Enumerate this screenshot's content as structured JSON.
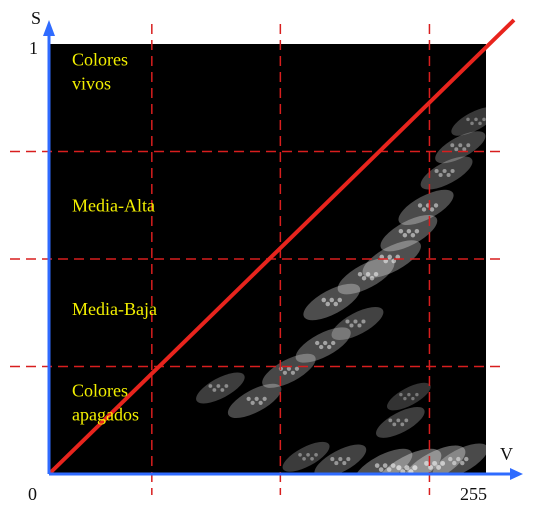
{
  "chart_data": {
    "type": "heatmap",
    "title": "",
    "xlabel": "V",
    "ylabel": "S",
    "x_tick_labels": [
      "0",
      "255"
    ],
    "y_tick_labels": [
      "1"
    ],
    "xlim": [
      0,
      255
    ],
    "ylim": [
      0,
      1
    ],
    "background_color": "#000000",
    "axis_color": "#2f6bff",
    "threshold_line_color": "#e8241d",
    "guide_line_color": "#d81e1e",
    "zone_text_color": "#f3f000",
    "vertical_guides_v": [
      60,
      135,
      222
    ],
    "horizontal_guides_s": [
      0.25,
      0.5,
      0.75
    ],
    "threshold_line": {
      "from": [
        0,
        0
      ],
      "to": [
        255,
        1
      ]
    },
    "zones": [
      {
        "lines": [
          "Colores",
          "vivos"
        ],
        "label_s": 0.95
      },
      {
        "lines": [
          "Media-Alta"
        ],
        "label_s": 0.61
      },
      {
        "lines": [
          "Media-Baja"
        ],
        "label_s": 0.37
      },
      {
        "lines": [
          "Colores",
          "apagados"
        ],
        "label_s": 0.18
      }
    ],
    "density_band": [
      {
        "v": 210,
        "s": 0.01,
        "weight": 1.0
      },
      {
        "v": 225,
        "s": 0.02,
        "weight": 0.9
      },
      {
        "v": 195,
        "s": 0.015,
        "weight": 0.8
      },
      {
        "v": 240,
        "s": 0.03,
        "weight": 0.7
      },
      {
        "v": 170,
        "s": 0.03,
        "weight": 0.6
      },
      {
        "v": 150,
        "s": 0.04,
        "weight": 0.45
      },
      {
        "v": 205,
        "s": 0.12,
        "weight": 0.5
      },
      {
        "v": 210,
        "s": 0.18,
        "weight": 0.35
      },
      {
        "v": 120,
        "s": 0.17,
        "weight": 0.65
      },
      {
        "v": 100,
        "s": 0.2,
        "weight": 0.5
      },
      {
        "v": 140,
        "s": 0.24,
        "weight": 0.65
      },
      {
        "v": 160,
        "s": 0.3,
        "weight": 0.7
      },
      {
        "v": 180,
        "s": 0.35,
        "weight": 0.6
      },
      {
        "v": 165,
        "s": 0.4,
        "weight": 0.75
      },
      {
        "v": 185,
        "s": 0.46,
        "weight": 0.75
      },
      {
        "v": 200,
        "s": 0.5,
        "weight": 0.8
      },
      {
        "v": 210,
        "s": 0.56,
        "weight": 0.75
      },
      {
        "v": 220,
        "s": 0.62,
        "weight": 0.7
      },
      {
        "v": 232,
        "s": 0.7,
        "weight": 0.6
      },
      {
        "v": 240,
        "s": 0.76,
        "weight": 0.55
      },
      {
        "v": 248,
        "s": 0.82,
        "weight": 0.4
      }
    ]
  }
}
